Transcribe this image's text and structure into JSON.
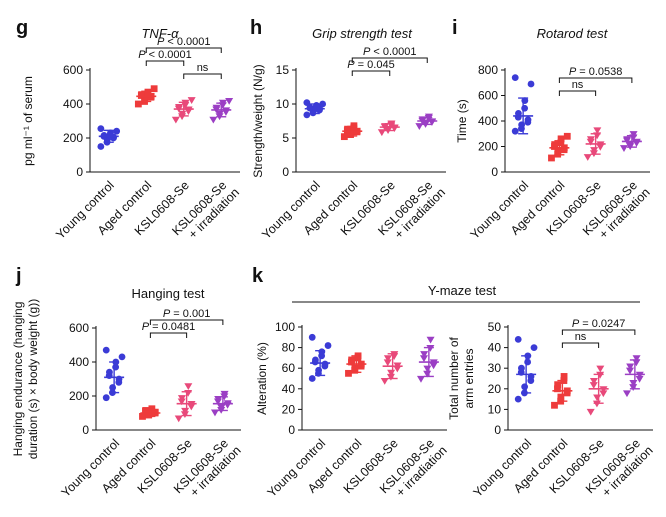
{
  "colors": {
    "young": "#3b3bd6",
    "aged": "#ee3b3b",
    "ksl": "#e8497a",
    "irr": "#9b3fc4",
    "axis": "#111111"
  },
  "categories": [
    "Young control",
    "Aged control",
    "KSL0608-Se",
    "KSL0608-Se",
    "+ irradiation"
  ],
  "header": {
    "ymaze_title": "Y-maze test"
  },
  "chart_data": [
    {
      "id": "g",
      "letter": "g",
      "type": "scatter",
      "title": "TNF-α",
      "title_style": "italic",
      "ylabel": [
        "pg ml⁻¹ of serum"
      ],
      "ylim": [
        0,
        600
      ],
      "yticks": [
        0,
        200,
        400,
        600
      ],
      "categories": [
        "Young control",
        "Aged control",
        "KSL0608-Se",
        "KSL0608-Se + irradiation"
      ],
      "series": [
        {
          "name": "Young control",
          "mean": 210,
          "sd": 35,
          "points": [
            150,
            175,
            190,
            200,
            205,
            210,
            215,
            220,
            230,
            240,
            255
          ]
        },
        {
          "name": "Aged control",
          "mean": 445,
          "sd": 30,
          "points": [
            400,
            415,
            430,
            440,
            445,
            450,
            455,
            460,
            470,
            490
          ]
        },
        {
          "name": "KSL0608-Se",
          "mean": 370,
          "sd": 40,
          "points": [
            310,
            330,
            345,
            360,
            370,
            375,
            385,
            395,
            410,
            425
          ]
        },
        {
          "name": "KSL0608-Se + irradiation",
          "mean": 365,
          "sd": 40,
          "points": [
            310,
            330,
            345,
            355,
            365,
            370,
            380,
            395,
            410,
            420
          ]
        }
      ],
      "annotations": [
        {
          "from": 1,
          "to": 3,
          "label": "P < 0.0001",
          "level": 2
        },
        {
          "from": 1,
          "to": 2,
          "label": "P < 0.0001",
          "level": 1
        },
        {
          "from": 2,
          "to": 3,
          "label": "ns",
          "level": 0
        }
      ]
    },
    {
      "id": "h",
      "letter": "h",
      "type": "scatter",
      "title": "Grip strength test",
      "title_style": "italic",
      "ylabel": [
        "Strength/weight (N/g)"
      ],
      "ylim": [
        0,
        15
      ],
      "yticks": [
        0,
        5,
        10,
        15
      ],
      "categories": [
        "Young control",
        "Aged control",
        "KSL0608-Se",
        "KSL0608-Se + irradiation"
      ],
      "series": [
        {
          "name": "Young control",
          "mean": 9.3,
          "sd": 0.7,
          "points": [
            8.4,
            8.7,
            9.0,
            9.1,
            9.3,
            9.4,
            9.5,
            9.6,
            9.8,
            10.0,
            10.2
          ]
        },
        {
          "name": "Aged control",
          "mean": 6.0,
          "sd": 0.7,
          "points": [
            5.2,
            5.5,
            5.7,
            5.9,
            6.0,
            6.1,
            6.3,
            6.5,
            6.8
          ]
        },
        {
          "name": "KSL0608-Se",
          "mean": 6.6,
          "sd": 0.5,
          "points": [
            5.9,
            6.2,
            6.4,
            6.5,
            6.6,
            6.7,
            6.8,
            7.0,
            7.2
          ]
        },
        {
          "name": "KSL0608-Se + irradiation",
          "mean": 7.5,
          "sd": 0.5,
          "points": [
            6.8,
            7.1,
            7.3,
            7.4,
            7.5,
            7.6,
            7.8,
            8.0,
            8.2
          ]
        }
      ],
      "annotations": [
        {
          "from": 1,
          "to": 3,
          "label": "P < 0.0001",
          "level": 1
        },
        {
          "from": 1,
          "to": 2,
          "label": "P = 0.045",
          "level": 0
        }
      ]
    },
    {
      "id": "i",
      "letter": "i",
      "type": "scatter",
      "title": "Rotarod test",
      "title_style": "italic",
      "ylabel": [
        "Time (s)"
      ],
      "ylim": [
        0,
        800
      ],
      "yticks": [
        0,
        200,
        400,
        600,
        800
      ],
      "categories": [
        "Young control",
        "Aged control",
        "KSL0608-Se",
        "KSL0608-Se + irradiation"
      ],
      "series": [
        {
          "name": "Young control",
          "mean": 440,
          "sd": 140,
          "points": [
            320,
            340,
            370,
            390,
            410,
            430,
            460,
            500,
            560,
            690,
            740
          ]
        },
        {
          "name": "Aged control",
          "mean": 190,
          "sd": 55,
          "points": [
            110,
            140,
            160,
            175,
            190,
            200,
            215,
            230,
            260,
            280
          ]
        },
        {
          "name": "KSL0608-Se",
          "mean": 220,
          "sd": 80,
          "points": [
            120,
            150,
            175,
            200,
            220,
            240,
            260,
            290,
            330
          ]
        },
        {
          "name": "KSL0608-Se + irradiation",
          "mean": 240,
          "sd": 45,
          "points": [
            190,
            205,
            220,
            230,
            240,
            250,
            260,
            275,
            300
          ]
        }
      ],
      "annotations": [
        {
          "from": 1,
          "to": 3,
          "label": "P = 0.0538",
          "level": 1
        },
        {
          "from": 1,
          "to": 2,
          "label": "ns",
          "level": 0
        }
      ]
    },
    {
      "id": "j",
      "letter": "j",
      "type": "scatter",
      "title": "Hanging test",
      "title_style": "plain",
      "ylabel": [
        "Hanging endurance (hanging",
        "duration (s) × body weight (g))"
      ],
      "ylim": [
        0,
        600
      ],
      "yticks": [
        0,
        200,
        400,
        600
      ],
      "categories": [
        "Young control",
        "Aged control",
        "KSL0608-Se",
        "KSL0608-Se + irradiation"
      ],
      "series": [
        {
          "name": "Young control",
          "mean": 310,
          "sd": 90,
          "points": [
            190,
            220,
            250,
            280,
            300,
            320,
            340,
            370,
            400,
            430,
            470
          ]
        },
        {
          "name": "Aged control",
          "mean": 100,
          "sd": 20,
          "points": [
            80,
            88,
            95,
            100,
            105,
            110,
            115,
            125
          ]
        },
        {
          "name": "KSL0608-Se",
          "mean": 155,
          "sd": 70,
          "points": [
            70,
            95,
            115,
            140,
            155,
            170,
            190,
            220,
            260
          ]
        },
        {
          "name": "KSL0608-Se + irradiation",
          "mean": 155,
          "sd": 40,
          "points": [
            105,
            120,
            135,
            150,
            160,
            170,
            185,
            200,
            215
          ]
        }
      ],
      "annotations": [
        {
          "from": 1,
          "to": 3,
          "label": "P = 0.001",
          "level": 1
        },
        {
          "from": 1,
          "to": 2,
          "label": "P = 0.0481",
          "level": 0
        }
      ]
    },
    {
      "id": "k1",
      "letter": "k",
      "type": "scatter",
      "title": "",
      "title_style": "plain",
      "ylabel": [
        "Alteration (%)"
      ],
      "ylim": [
        0,
        100
      ],
      "yticks": [
        0,
        20,
        40,
        60,
        80,
        100
      ],
      "categories": [
        "Young control",
        "Aged control",
        "KSL0608-Se",
        "KSL0608-Se + irradiation"
      ],
      "series": [
        {
          "name": "Young control",
          "mean": 65,
          "sd": 12,
          "points": [
            50,
            55,
            58,
            62,
            64,
            66,
            68,
            72,
            76,
            82,
            90
          ]
        },
        {
          "name": "Aged control",
          "mean": 64,
          "sd": 8,
          "points": [
            55,
            58,
            60,
            62,
            64,
            66,
            68,
            70,
            72
          ]
        },
        {
          "name": "KSL0608-Se",
          "mean": 62,
          "sd": 12,
          "points": [
            48,
            52,
            56,
            60,
            63,
            66,
            70,
            72,
            74
          ]
        },
        {
          "name": "KSL0608-Se + irradiation",
          "mean": 66,
          "sd": 14,
          "points": [
            50,
            55,
            60,
            63,
            66,
            70,
            74,
            80,
            88
          ]
        }
      ],
      "annotations": []
    },
    {
      "id": "k2",
      "letter": "",
      "type": "scatter",
      "title": "",
      "title_style": "plain",
      "ylabel": [
        "Total number of",
        "arm entries"
      ],
      "ylim": [
        0,
        50
      ],
      "yticks": [
        0,
        10,
        20,
        30,
        40,
        50
      ],
      "categories": [
        "Young control",
        "Aged control",
        "KSL0608-Se",
        "KSL0608-Se + irradiation"
      ],
      "series": [
        {
          "name": "Young control",
          "mean": 27,
          "sd": 9,
          "points": [
            15,
            18,
            21,
            24,
            26,
            28,
            30,
            33,
            36,
            40,
            44
          ]
        },
        {
          "name": "Aged control",
          "mean": 19,
          "sd": 5,
          "points": [
            12,
            14,
            16,
            18,
            19,
            20,
            22,
            24,
            26
          ]
        },
        {
          "name": "KSL0608-Se",
          "mean": 20,
          "sd": 7,
          "points": [
            9,
            13,
            16,
            18,
            20,
            22,
            24,
            27,
            30
          ]
        },
        {
          "name": "KSL0608-Se + irradiation",
          "mean": 27,
          "sd": 7,
          "points": [
            18,
            21,
            23,
            25,
            27,
            29,
            31,
            33,
            35
          ]
        }
      ],
      "annotations": [
        {
          "from": 1,
          "to": 3,
          "label": "P = 0.0247",
          "level": 1
        },
        {
          "from": 1,
          "to": 2,
          "label": "ns",
          "level": 0
        }
      ]
    }
  ]
}
